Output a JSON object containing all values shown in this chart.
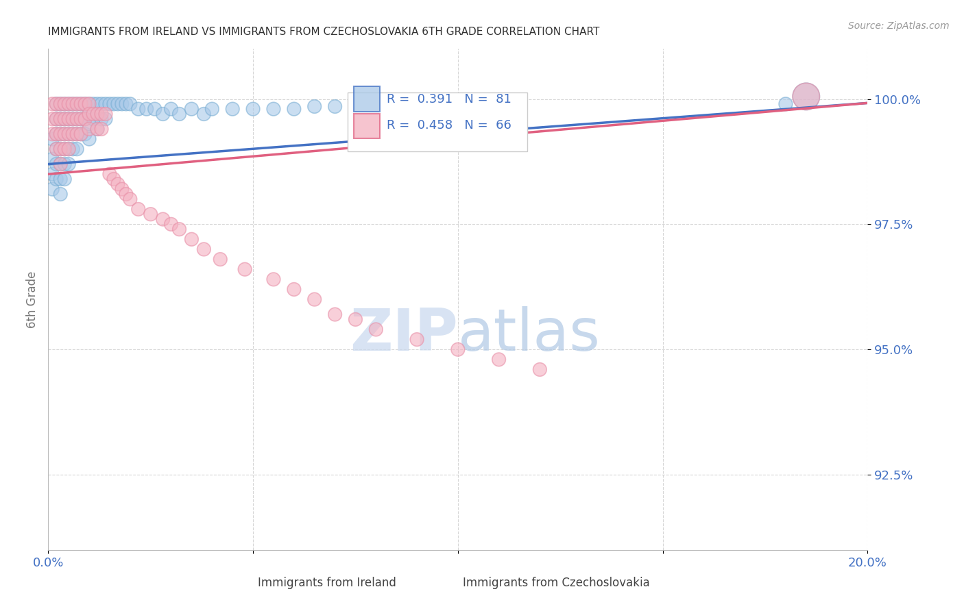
{
  "title": "IMMIGRANTS FROM IRELAND VS IMMIGRANTS FROM CZECHOSLOVAKIA 6TH GRADE CORRELATION CHART",
  "source": "Source: ZipAtlas.com",
  "ylabel": "6th Grade",
  "xlim": [
    0.0,
    0.2
  ],
  "ylim": [
    0.91,
    1.01
  ],
  "yticks": [
    0.925,
    0.95,
    0.975,
    1.0
  ],
  "ytick_labels": [
    "92.5%",
    "95.0%",
    "97.5%",
    "100.0%"
  ],
  "xticks": [
    0.0,
    0.05,
    0.1,
    0.15,
    0.2
  ],
  "xtick_labels": [
    "0.0%",
    "",
    "",
    "",
    "20.0%"
  ],
  "ireland_color": "#a8c8e8",
  "czech_color": "#f4b0c0",
  "ireland_edge_color": "#7bafd4",
  "czech_edge_color": "#e890a8",
  "ireland_line_color": "#4472c4",
  "czech_line_color": "#e06080",
  "R_ireland": 0.391,
  "N_ireland": 81,
  "R_czech": 0.458,
  "N_czech": 66,
  "legend_label_ireland": "Immigrants from Ireland",
  "legend_label_czech": "Immigrants from Czechoslovakia",
  "ireland_x": [
    0.001,
    0.001,
    0.001,
    0.001,
    0.002,
    0.002,
    0.002,
    0.002,
    0.002,
    0.002,
    0.003,
    0.003,
    0.003,
    0.003,
    0.003,
    0.003,
    0.003,
    0.004,
    0.004,
    0.004,
    0.004,
    0.004,
    0.004,
    0.005,
    0.005,
    0.005,
    0.005,
    0.005,
    0.006,
    0.006,
    0.006,
    0.006,
    0.007,
    0.007,
    0.007,
    0.007,
    0.008,
    0.008,
    0.008,
    0.009,
    0.009,
    0.009,
    0.01,
    0.01,
    0.01,
    0.01,
    0.011,
    0.011,
    0.012,
    0.012,
    0.012,
    0.013,
    0.013,
    0.014,
    0.014,
    0.015,
    0.016,
    0.017,
    0.018,
    0.019,
    0.02,
    0.022,
    0.024,
    0.026,
    0.028,
    0.03,
    0.032,
    0.035,
    0.038,
    0.04,
    0.045,
    0.05,
    0.055,
    0.06,
    0.065,
    0.07,
    0.08,
    0.09,
    0.1,
    0.18,
    0.185
  ],
  "ireland_y": [
    0.992,
    0.988,
    0.985,
    0.982,
    0.999,
    0.996,
    0.993,
    0.99,
    0.987,
    0.984,
    0.999,
    0.996,
    0.993,
    0.99,
    0.987,
    0.984,
    0.981,
    0.999,
    0.996,
    0.993,
    0.99,
    0.987,
    0.984,
    0.999,
    0.996,
    0.993,
    0.99,
    0.987,
    0.999,
    0.996,
    0.993,
    0.99,
    0.999,
    0.996,
    0.993,
    0.99,
    0.999,
    0.996,
    0.993,
    0.999,
    0.996,
    0.993,
    0.999,
    0.997,
    0.995,
    0.992,
    0.999,
    0.996,
    0.999,
    0.997,
    0.994,
    0.999,
    0.996,
    0.999,
    0.996,
    0.999,
    0.999,
    0.999,
    0.999,
    0.999,
    0.999,
    0.998,
    0.998,
    0.998,
    0.997,
    0.998,
    0.997,
    0.998,
    0.997,
    0.998,
    0.998,
    0.998,
    0.998,
    0.998,
    0.9985,
    0.9985,
    0.9985,
    0.9985,
    0.999,
    0.999,
    1.0005
  ],
  "ireland_sizes": [
    200,
    200,
    200,
    200,
    200,
    200,
    200,
    200,
    200,
    200,
    200,
    200,
    200,
    200,
    200,
    200,
    200,
    200,
    200,
    200,
    200,
    200,
    200,
    200,
    200,
    200,
    200,
    200,
    200,
    200,
    200,
    200,
    200,
    200,
    200,
    200,
    200,
    200,
    200,
    200,
    200,
    200,
    200,
    200,
    200,
    200,
    200,
    200,
    200,
    200,
    200,
    200,
    200,
    200,
    200,
    200,
    200,
    200,
    200,
    200,
    200,
    200,
    200,
    200,
    200,
    200,
    200,
    200,
    200,
    200,
    200,
    200,
    200,
    200,
    200,
    200,
    200,
    200,
    200,
    200,
    800
  ],
  "czech_x": [
    0.001,
    0.001,
    0.001,
    0.002,
    0.002,
    0.002,
    0.002,
    0.003,
    0.003,
    0.003,
    0.003,
    0.003,
    0.004,
    0.004,
    0.004,
    0.004,
    0.005,
    0.005,
    0.005,
    0.005,
    0.006,
    0.006,
    0.006,
    0.007,
    0.007,
    0.007,
    0.008,
    0.008,
    0.008,
    0.009,
    0.009,
    0.01,
    0.01,
    0.01,
    0.011,
    0.012,
    0.012,
    0.013,
    0.013,
    0.014,
    0.015,
    0.016,
    0.017,
    0.018,
    0.019,
    0.02,
    0.022,
    0.025,
    0.028,
    0.03,
    0.032,
    0.035,
    0.038,
    0.042,
    0.048,
    0.055,
    0.06,
    0.065,
    0.07,
    0.075,
    0.08,
    0.09,
    0.1,
    0.11,
    0.12,
    0.185
  ],
  "czech_y": [
    0.999,
    0.996,
    0.993,
    0.999,
    0.996,
    0.993,
    0.99,
    0.999,
    0.996,
    0.993,
    0.99,
    0.987,
    0.999,
    0.996,
    0.993,
    0.99,
    0.999,
    0.996,
    0.993,
    0.99,
    0.999,
    0.996,
    0.993,
    0.999,
    0.996,
    0.993,
    0.999,
    0.996,
    0.993,
    0.999,
    0.996,
    0.999,
    0.997,
    0.994,
    0.997,
    0.997,
    0.994,
    0.997,
    0.994,
    0.997,
    0.985,
    0.984,
    0.983,
    0.982,
    0.981,
    0.98,
    0.978,
    0.977,
    0.976,
    0.975,
    0.974,
    0.972,
    0.97,
    0.968,
    0.966,
    0.964,
    0.962,
    0.96,
    0.957,
    0.956,
    0.954,
    0.952,
    0.95,
    0.948,
    0.946,
    1.0005
  ],
  "czech_sizes": [
    200,
    200,
    200,
    200,
    200,
    200,
    200,
    200,
    200,
    200,
    200,
    200,
    200,
    200,
    200,
    200,
    200,
    200,
    200,
    200,
    200,
    200,
    200,
    200,
    200,
    200,
    200,
    200,
    200,
    200,
    200,
    200,
    200,
    200,
    200,
    200,
    200,
    200,
    200,
    200,
    200,
    200,
    200,
    200,
    200,
    200,
    200,
    200,
    200,
    200,
    200,
    200,
    200,
    200,
    200,
    200,
    200,
    200,
    200,
    200,
    200,
    200,
    200,
    200,
    200,
    800
  ],
  "background_color": "#ffffff",
  "grid_color": "#cccccc",
  "title_color": "#333333",
  "axis_tick_color": "#4472c4",
  "watermark_zip": "ZIP",
  "watermark_atlas": "atlas",
  "watermark_color_zip": "#c8d8ee",
  "watermark_color_atlas": "#b0c8e4"
}
